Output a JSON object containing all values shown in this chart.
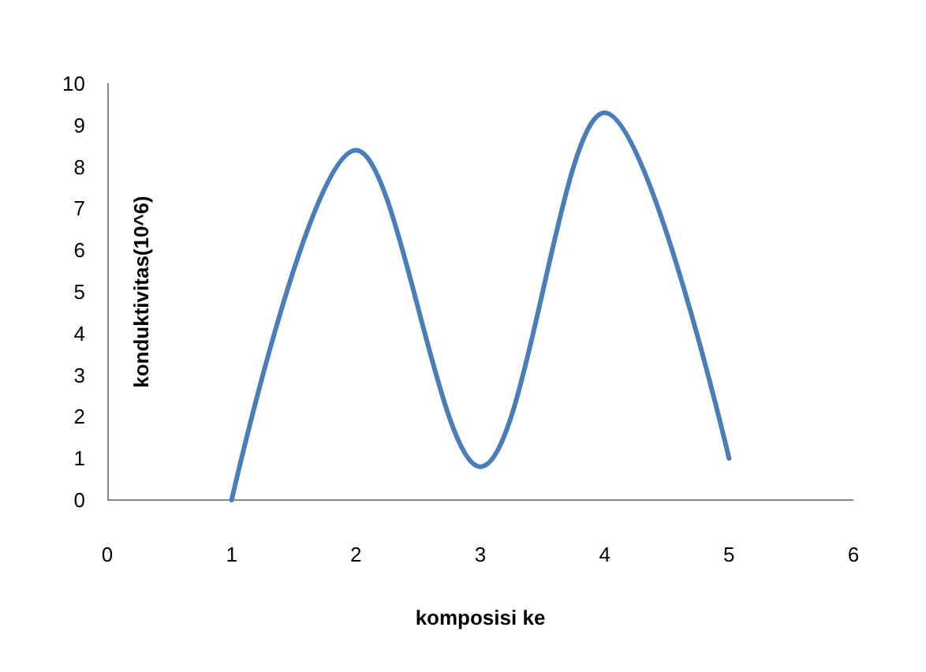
{
  "chart_data": {
    "type": "line",
    "xlabel": "komposisi ke",
    "ylabel": "konduktivitas(10^6)",
    "x": [
      1,
      2,
      3,
      4,
      5
    ],
    "series": [
      {
        "color": "#4a7ebb",
        "values": [
          0,
          8.4,
          0.8,
          9.3,
          1.0
        ]
      }
    ],
    "xlim": [
      0,
      6
    ],
    "xticks": [
      0,
      1,
      2,
      3,
      4,
      5,
      6
    ],
    "ylim": [
      0,
      10
    ],
    "yticks": [
      0,
      1,
      2,
      3,
      4,
      5,
      6,
      7,
      8,
      9,
      10
    ],
    "grid": false,
    "marker": "none",
    "line_style": "solid"
  }
}
